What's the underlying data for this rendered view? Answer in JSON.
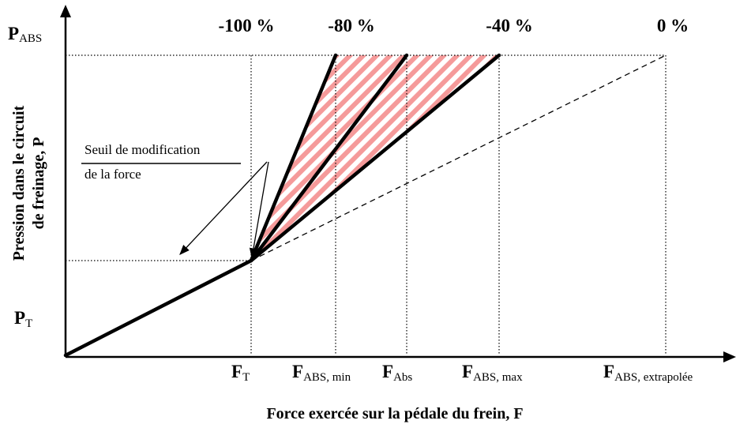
{
  "percent_labels": [
    "-100 %",
    "-80 %",
    "-40 %",
    "0 %"
  ],
  "y_axis": {
    "title_lines": [
      "Pression dans le circuit",
      "de freinage, P"
    ],
    "labels": [
      {
        "main": "P",
        "sub": "ABS"
      },
      {
        "main": "P",
        "sub": "T"
      }
    ]
  },
  "x_axis": {
    "title": "Force exercée sur la pédale du frein, F",
    "labels": [
      {
        "main": "F",
        "sub": "T"
      },
      {
        "main": "F",
        "sub": "ABS, min"
      },
      {
        "main": "F",
        "sub": "Abs"
      },
      {
        "main": "F",
        "sub": "ABS, max"
      },
      {
        "main": "F",
        "sub": "ABS, extrapolée"
      }
    ]
  },
  "annotation": {
    "lines": [
      "Seuil de modification",
      "de la force"
    ]
  }
}
